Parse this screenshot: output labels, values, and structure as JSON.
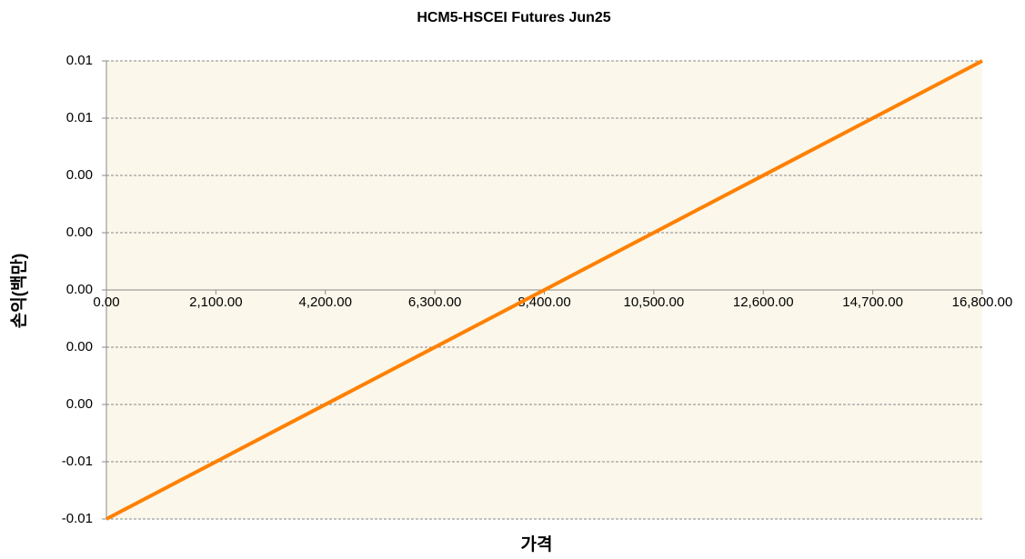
{
  "chart_data": {
    "type": "line",
    "title": "HCM5-HSCEI Futures Jun25",
    "x_label": "가격",
    "y_label": "손익(백만)",
    "x": [
      0,
      16800
    ],
    "values": [
      -0.008,
      0.008
    ],
    "color": "#ff8000",
    "xlim": [
      0,
      16800
    ],
    "xticks": [
      {
        "value": 0,
        "label": "0.00"
      },
      {
        "value": 2100,
        "label": "2,100.00"
      },
      {
        "value": 4200,
        "label": "4,200.00"
      },
      {
        "value": 6300,
        "label": "6,300.00"
      },
      {
        "value": 8400,
        "label": "8,400.00"
      },
      {
        "value": 10500,
        "label": "10,500.00"
      },
      {
        "value": 12600,
        "label": "12,600.00"
      },
      {
        "value": 14700,
        "label": "14,700.00"
      },
      {
        "value": 16800,
        "label": "16,800.00"
      }
    ],
    "ylim": [
      -0.008,
      0.008
    ],
    "yticks": [
      {
        "value": -0.008,
        "label": "-0.01"
      },
      {
        "value": -0.006,
        "label": "-0.01"
      },
      {
        "value": -0.004,
        "label": "0.00"
      },
      {
        "value": -0.002,
        "label": "0.00"
      },
      {
        "value": 0,
        "label": "0.00"
      },
      {
        "value": 0.002,
        "label": "0.00"
      },
      {
        "value": 0.004,
        "label": "0.00"
      },
      {
        "value": 0.006,
        "label": "0.01"
      },
      {
        "value": 0.008,
        "label": "0.01"
      }
    ],
    "grid": true
  }
}
